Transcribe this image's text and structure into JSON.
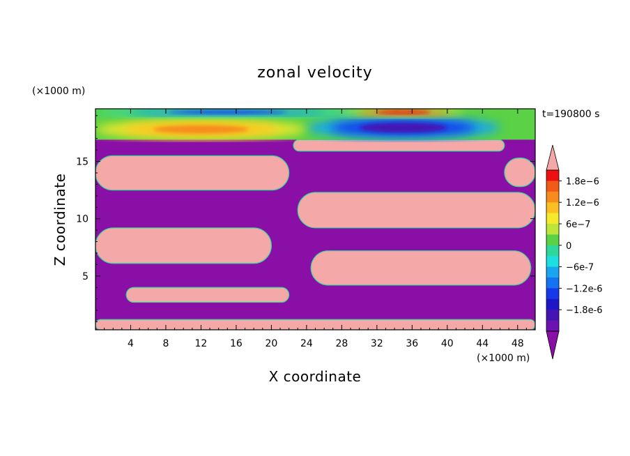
{
  "chart_data": {
    "type": "heatmap",
    "title": "zonal velocity",
    "xlabel": "X coordinate",
    "ylabel": "Z coordinate",
    "x_unit": "(×1000 m)",
    "y_unit": "(×1000 m)",
    "time_label": "t=190800 s",
    "xlim": [
      0,
      50
    ],
    "ylim": [
      0.3,
      19.6
    ],
    "x_ticks": [
      4,
      8,
      12,
      16,
      20,
      24,
      28,
      32,
      36,
      40,
      44,
      48
    ],
    "y_ticks": [
      5,
      10,
      15
    ],
    "grid": false,
    "colorbar": {
      "placement": "right",
      "extend": "both",
      "levels": [
        "1.8e-6",
        "1.2e-6",
        "6e-7",
        "0",
        "-6e-7",
        "-1.2e-6",
        "-1.8e-6"
      ],
      "colors_top_to_bottom": [
        "#f4a9a8",
        "#ee1111",
        "#f25a19",
        "#f78b1c",
        "#fbbf21",
        "#f5ea2a",
        "#bde53a",
        "#5bd145",
        "#2ed79a",
        "#1cdfe0",
        "#19a6ee",
        "#1573f2",
        "#1538ea",
        "#1d17c8",
        "#4515b3",
        "#6b12b0",
        "#8a0fa6"
      ],
      "positive_saturated_color": "#f4a9a8",
      "negative_saturated_color": "#8a0fa6"
    },
    "regions": {
      "background": "negative_saturated",
      "positive_saturated_layers": [
        {
          "x": [
            0,
            50
          ],
          "z": [
            0.3,
            1.2
          ]
        },
        {
          "x": [
            0,
            22
          ],
          "z": [
            12.5,
            15.5
          ]
        },
        {
          "x": [
            0,
            20
          ],
          "z": [
            6.1,
            9.2
          ]
        },
        {
          "x": [
            3.5,
            22
          ],
          "z": [
            2.7,
            4
          ]
        },
        {
          "x": [
            23,
            50
          ],
          "z": [
            9.2,
            12.3
          ]
        },
        {
          "x": [
            24.5,
            49.5
          ],
          "z": [
            4.2,
            7.2
          ]
        },
        {
          "x": [
            22.5,
            46.5
          ],
          "z": [
            15.9,
            16.9
          ]
        },
        {
          "x": [
            46.5,
            50
          ],
          "z": [
            12.8,
            15.3
          ]
        }
      ],
      "upper_layer_z": [
        16.9,
        19.6
      ],
      "upper_layer_features": [
        {
          "sign": "negative",
          "x": [
            24,
            46
          ],
          "z": [
            17,
            18.9
          ],
          "peak": "-1.8e-6"
        },
        {
          "sign": "positive",
          "x": [
            0,
            24
          ],
          "z": [
            17,
            18.6
          ],
          "peak": "1.2e-6"
        },
        {
          "sign": "positive",
          "x": [
            28,
            42
          ],
          "z": [
            19,
            19.6
          ],
          "peak": "1.8e-6"
        },
        {
          "sign": "negative",
          "x": [
            0,
            30
          ],
          "z": [
            19,
            19.6
          ],
          "peak": "-1.2e-6"
        }
      ]
    }
  }
}
